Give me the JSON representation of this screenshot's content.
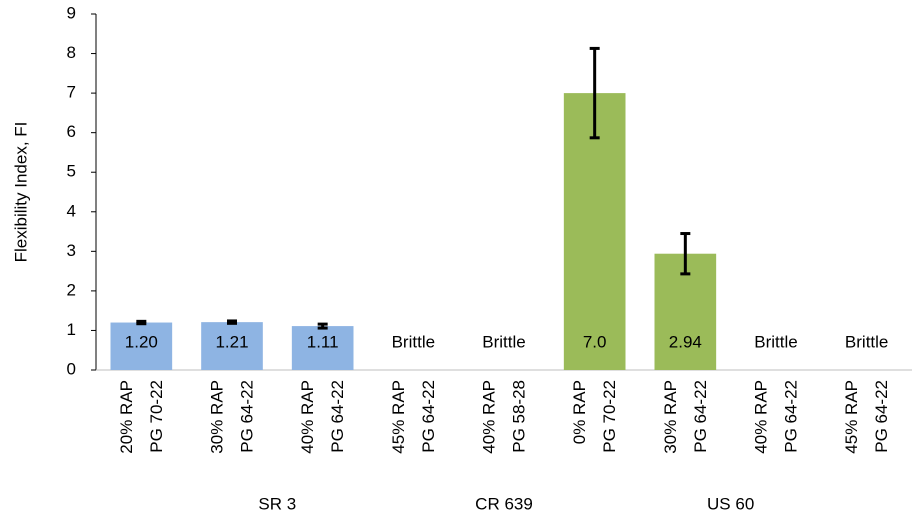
{
  "chart_data": {
    "type": "bar",
    "y_label": "Flexibility Index, FI",
    "categories": [
      [
        "20% RAP",
        "PG 70-22"
      ],
      [
        "30% RAP",
        "PG 64-22"
      ],
      [
        "40% RAP",
        "PG 64-22"
      ],
      [
        "45% RAP",
        "PG 64-22"
      ],
      [
        "40% RAP",
        "PG 58-28"
      ],
      [
        "0% RAP",
        "PG 70-22"
      ],
      [
        "30% RAP",
        "PG 64-22"
      ],
      [
        "40% RAP",
        "PG 64-22"
      ],
      [
        "45% RAP",
        "PG 64-22"
      ]
    ],
    "groups": [
      {
        "name": "SR 3",
        "count": 4
      },
      {
        "name": "CR 639",
        "count": 1
      },
      {
        "name": "US 60",
        "count": 4
      }
    ],
    "values": [
      1.2,
      1.21,
      1.11,
      null,
      null,
      7.0,
      2.94,
      null,
      null
    ],
    "value_labels": [
      "1.20",
      "1.21",
      "1.11",
      "Brittle",
      "Brittle",
      "7.0",
      "2.94",
      "Brittle",
      "Brittle"
    ],
    "errors": [
      0.03,
      0.03,
      0.05,
      null,
      null,
      1.13,
      0.51,
      null,
      null
    ],
    "colors": [
      "#8eb4e3",
      "#8eb4e3",
      "#8eb4e3",
      null,
      null,
      "#9bbb59",
      "#9bbb59",
      null,
      null
    ],
    "ylim": [
      0,
      9
    ],
    "yticks": [
      0,
      1,
      2,
      3,
      4,
      5,
      6,
      7,
      8,
      9
    ],
    "grid": false
  }
}
